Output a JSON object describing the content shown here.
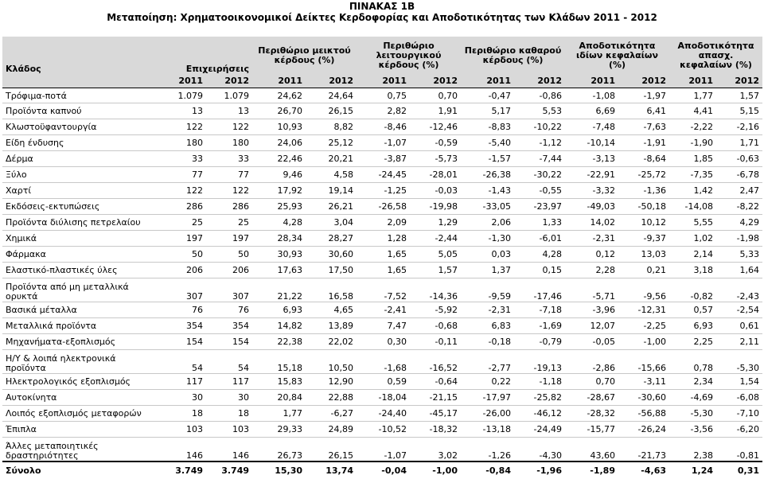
{
  "title": "ΠΙΝΑΚΑΣ 1Β",
  "subtitle": "Μεταποίηση: Χρηματοοικονομικοί Δείκτες Κερδοφορίας και Αποδοτικότητας των Κλάδων 2011 - 2012",
  "header": {
    "sector": "Κλάδος",
    "firms": "Επιχειρήσεις",
    "groups": [
      "Περιθώριο μεικτού κέρδους (%)",
      "Περιθώριο λειτουργικού κέρδους (%)",
      "Περιθώριο καθαρού κέρδους (%)",
      "Αποδοτικότητα ιδίων κεφαλαίων (%)",
      "Αποδοτικότητα απασχ. κεφαλαίων (%)"
    ],
    "years": [
      "2011",
      "2012",
      "2011",
      "2012",
      "2011",
      "2012",
      "2011",
      "2012",
      "2011",
      "2012",
      "2011",
      "2012"
    ]
  },
  "rows": [
    {
      "name": "Τρόφιμα-ποτά",
      "v": [
        "1.079",
        "1.079",
        "24,62",
        "24,64",
        "0,75",
        "0,70",
        "-0,47",
        "-0,86",
        "-1,08",
        "-1,97",
        "1,77",
        "1,57"
      ]
    },
    {
      "name": "Προϊόντα καπνού",
      "v": [
        "13",
        "13",
        "26,70",
        "26,15",
        "2,82",
        "1,91",
        "5,17",
        "5,53",
        "6,69",
        "6,41",
        "4,41",
        "5,15"
      ]
    },
    {
      "name": "Κλωστοϋφαντουργία",
      "v": [
        "122",
        "122",
        "10,93",
        "8,82",
        "-8,46",
        "-12,46",
        "-8,83",
        "-10,22",
        "-7,48",
        "-7,63",
        "-2,22",
        "-2,16"
      ]
    },
    {
      "name": "Είδη ένδυσης",
      "v": [
        "180",
        "180",
        "24,06",
        "25,12",
        "-1,07",
        "-0,59",
        "-5,40",
        "-1,12",
        "-10,14",
        "-1,91",
        "-1,90",
        "1,71"
      ]
    },
    {
      "name": "Δέρμα",
      "v": [
        "33",
        "33",
        "22,46",
        "20,21",
        "-3,87",
        "-5,73",
        "-1,57",
        "-7,44",
        "-3,13",
        "-8,64",
        "1,85",
        "-0,63"
      ]
    },
    {
      "name": "Ξύλο",
      "v": [
        "77",
        "77",
        "9,46",
        "4,58",
        "-24,45",
        "-28,01",
        "-26,38",
        "-30,22",
        "-22,91",
        "-25,72",
        "-7,35",
        "-6,78"
      ]
    },
    {
      "name": "Χαρτί",
      "v": [
        "122",
        "122",
        "17,92",
        "19,14",
        "-1,25",
        "-0,03",
        "-1,43",
        "-0,55",
        "-3,32",
        "-1,36",
        "1,42",
        "2,47"
      ]
    },
    {
      "name": "Εκδόσεις-εκτυπώσεις",
      "v": [
        "286",
        "286",
        "25,93",
        "26,21",
        "-26,58",
        "-19,98",
        "-33,05",
        "-23,97",
        "-49,03",
        "-50,18",
        "-14,08",
        "-8,22"
      ]
    },
    {
      "name": "Προϊόντα διύλισης πετρελαίου",
      "v": [
        "25",
        "25",
        "4,28",
        "3,04",
        "2,09",
        "1,29",
        "2,06",
        "1,33",
        "14,02",
        "10,12",
        "5,55",
        "4,29"
      ]
    },
    {
      "name": "Χημικά",
      "v": [
        "197",
        "197",
        "28,34",
        "28,27",
        "1,28",
        "-2,44",
        "-1,30",
        "-6,01",
        "-2,31",
        "-9,37",
        "1,02",
        "-1,98"
      ]
    },
    {
      "name": "Φάρμακα",
      "v": [
        "50",
        "50",
        "30,93",
        "30,60",
        "1,65",
        "5,05",
        "0,03",
        "4,28",
        "0,12",
        "13,03",
        "2,14",
        "5,33"
      ]
    },
    {
      "name": "Ελαστικό-πλαστικές ύλες",
      "v": [
        "206",
        "206",
        "17,63",
        "17,50",
        "1,65",
        "1,57",
        "1,37",
        "0,15",
        "2,28",
        "0,21",
        "3,18",
        "1,64"
      ]
    },
    {
      "name": "Προϊόντα από μη μεταλλικά ορυκτά",
      "v": [
        "307",
        "307",
        "21,22",
        "16,58",
        "-7,52",
        "-14,36",
        "-9,59",
        "-17,46",
        "-5,71",
        "-9,56",
        "-0,82",
        "-2,43"
      ]
    },
    {
      "name": "Βασικά μέταλλα",
      "v": [
        "76",
        "76",
        "6,93",
        "4,65",
        "-2,41",
        "-5,92",
        "-2,31",
        "-7,18",
        "-3,96",
        "-12,31",
        "0,57",
        "-2,54"
      ]
    },
    {
      "name": "Μεταλλικά προϊόντα",
      "v": [
        "354",
        "354",
        "14,82",
        "13,89",
        "7,47",
        "-0,68",
        "6,83",
        "-1,69",
        "12,07",
        "-2,25",
        "6,93",
        "0,61"
      ]
    },
    {
      "name": "Μηχανήματα-εξοπλισμός",
      "v": [
        "154",
        "154",
        "22,38",
        "22,02",
        "0,30",
        "-0,11",
        "-0,18",
        "-0,79",
        "-0,05",
        "-1,00",
        "2,25",
        "2,11"
      ]
    },
    {
      "name": "Η/Υ & λοιπά ηλεκτρονικά προϊόντα",
      "v": [
        "54",
        "54",
        "15,18",
        "10,50",
        "-1,68",
        "-16,52",
        "-2,77",
        "-19,13",
        "-2,86",
        "-15,66",
        "0,78",
        "-5,30"
      ]
    },
    {
      "name": "Ηλεκτρολογικός εξοπλισμός",
      "v": [
        "117",
        "117",
        "15,83",
        "12,90",
        "0,59",
        "-0,64",
        "0,22",
        "-1,18",
        "0,70",
        "-3,11",
        "2,34",
        "1,54"
      ]
    },
    {
      "name": "Αυτοκίνητα",
      "v": [
        "30",
        "30",
        "20,84",
        "22,88",
        "-18,04",
        "-21,15",
        "-17,97",
        "-25,82",
        "-28,67",
        "-30,60",
        "-4,69",
        "-6,08"
      ]
    },
    {
      "name": "Λοιπός εξοπλισμός μεταφορών",
      "v": [
        "18",
        "18",
        "1,77",
        "-6,27",
        "-24,40",
        "-45,17",
        "-26,00",
        "-46,12",
        "-28,32",
        "-56,88",
        "-5,30",
        "-7,10"
      ]
    },
    {
      "name": "Έπιπλα",
      "v": [
        "103",
        "103",
        "29,33",
        "24,89",
        "-10,52",
        "-18,32",
        "-13,18",
        "-24,49",
        "-15,77",
        "-26,24",
        "-3,56",
        "-6,20"
      ]
    },
    {
      "name": "Άλλες μεταποιητικές δραστηριότητες",
      "v": [
        "146",
        "146",
        "26,73",
        "26,15",
        "-1,07",
        "3,02",
        "-1,26",
        "-4,30",
        "43,60",
        "-21,73",
        "2,38",
        "-0,81"
      ]
    }
  ],
  "total": {
    "name": "Σύνολο",
    "v": [
      "3.749",
      "3.749",
      "15,30",
      "13,74",
      "-0,04",
      "-1,00",
      "-0,84",
      "-1,96",
      "-1,89",
      "-4,63",
      "1,24",
      "0,31"
    ]
  }
}
